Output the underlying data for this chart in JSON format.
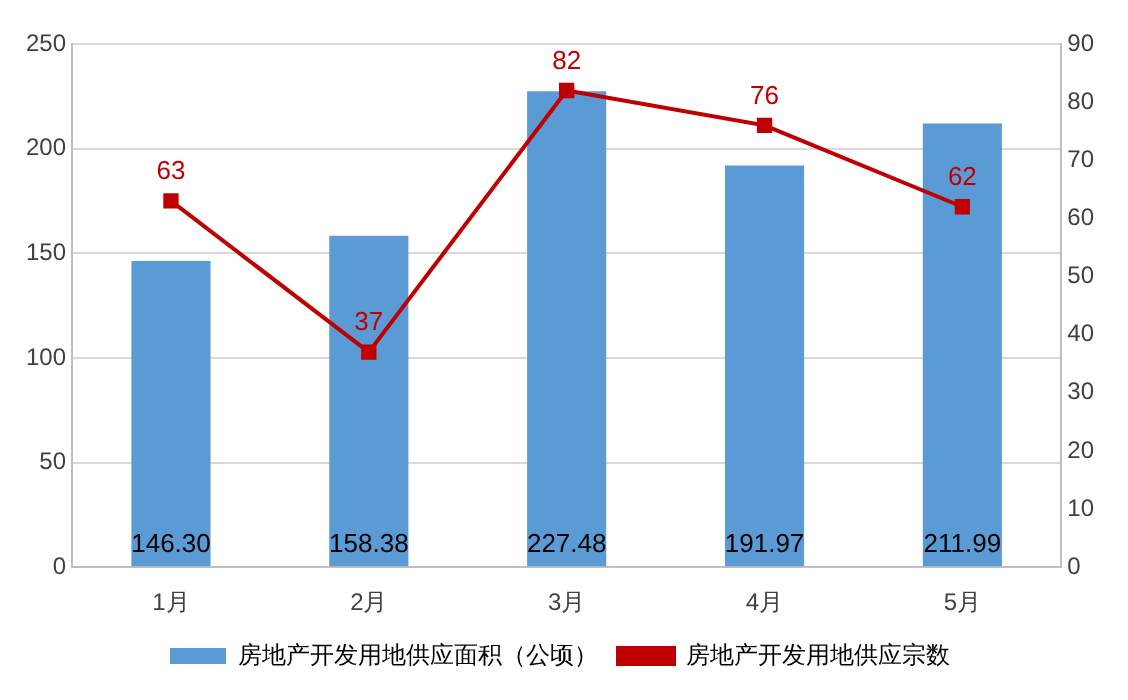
{
  "chart_data": {
    "type": "bar",
    "categories": [
      "1月",
      "2月",
      "3月",
      "4月",
      "5月"
    ],
    "series": [
      {
        "name": "房地产开发用地供应面积（公顷）",
        "color": "#5b9bd5",
        "values": [
          146.3,
          158.38,
          227.48,
          191.97,
          211.99
        ],
        "value_labels": [
          "146.30",
          "158.38",
          "227.48",
          "191.97",
          "211.99"
        ]
      },
      {
        "name": "房地产开发用地供应宗数",
        "type": "line",
        "axis": "y2",
        "color": "#c00000",
        "values": [
          63,
          37,
          82,
          76,
          62
        ],
        "value_labels": [
          "63",
          "37",
          "82",
          "76",
          "62"
        ]
      }
    ],
    "ylim": [
      0,
      250
    ],
    "yticks": [
      0,
      50,
      100,
      150,
      200,
      250
    ],
    "y2lim": [
      0,
      90
    ],
    "y2ticks": [
      0,
      10,
      20,
      30,
      40,
      50,
      60,
      70,
      80,
      90
    ],
    "grid": "y",
    "legend": "bottom",
    "marker": "square",
    "line_style": "solid"
  }
}
